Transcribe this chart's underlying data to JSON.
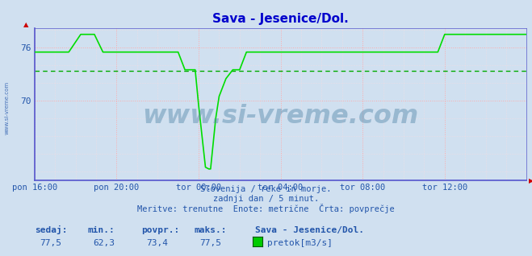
{
  "title": "Sava - Jesenice/Dol.",
  "title_color": "#0000cc",
  "bg_color": "#d0e0f0",
  "plot_bg_color": "#d0e0f0",
  "line_color": "#00dd00",
  "avg_line_color": "#00aa00",
  "avg_line_style": "--",
  "avg_value": 73.4,
  "min_value": 62.3,
  "max_value": 77.5,
  "current_value": 77.5,
  "ylim_min": 61.0,
  "ylim_max": 78.2,
  "yticks": [
    70,
    76
  ],
  "xtick_labels": [
    "pon 16:00",
    "pon 20:00",
    "tor 00:00",
    "tor 04:00",
    "tor 08:00",
    "tor 12:00"
  ],
  "xtick_positions": [
    0,
    48,
    96,
    144,
    192,
    240
  ],
  "total_points": 288,
  "subtitle_lines": [
    "Slovenija / reke in morje.",
    "zadnji dan / 5 minut.",
    "Meritve: trenutne  Enote: metrične  Črta: povprečje"
  ],
  "footer_labels": [
    "sedaj:",
    "min.:",
    "povpr.:",
    "maks.:"
  ],
  "footer_values": [
    "77,5",
    "62,3",
    "73,4",
    "77,5"
  ],
  "footer_station": "Sava - Jesenice/Dol.",
  "footer_legend": "pretok[m3/s]",
  "footer_legend_color": "#00cc00",
  "text_color": "#2255aa",
  "grid_color": "#ffaaaa",
  "minor_grid_color": "#ffdddd",
  "watermark": "www.si-vreme.com",
  "watermark_color": "#5588aa",
  "axis_color": "#5555cc",
  "spine_bottom_color": "#5555cc",
  "left_label": "www.si-vreme.com"
}
